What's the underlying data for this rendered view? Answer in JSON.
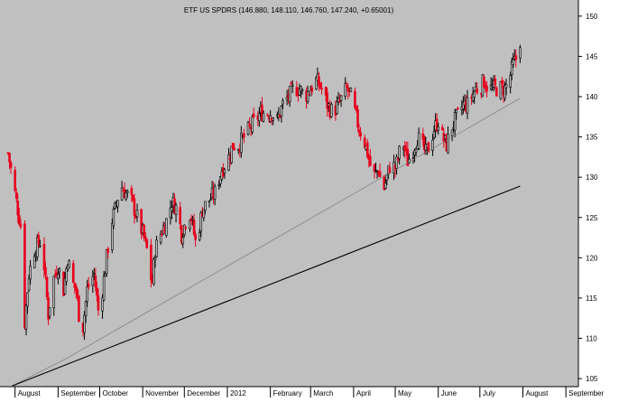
{
  "chart_data": {
    "type": "candlestick",
    "title": "ETF US SPDRS (146.880, 148.110, 146.760, 147.240, +0.65001)",
    "xlabel": "",
    "ylabel": "",
    "ylim": [
      104,
      152
    ],
    "y_ticks": [
      105,
      110,
      115,
      120,
      125,
      130,
      135,
      140,
      145,
      150
    ],
    "grid": false,
    "colors": {
      "background": "#c0c0c0",
      "up": "#000000",
      "down": "#e8001c",
      "trendline_thin": "#7a7a7a",
      "trendline_thick": "#000000"
    },
    "x_labels": [
      {
        "label": "August",
        "day": 0
      },
      {
        "label": "September",
        "day": 31
      },
      {
        "label": "October",
        "day": 61
      },
      {
        "label": "November",
        "day": 92
      },
      {
        "label": "December",
        "day": 122
      },
      {
        "label": "2012",
        "day": 153
      },
      {
        "label": "February",
        "day": 184
      },
      {
        "label": "March",
        "day": 213
      },
      {
        "label": "April",
        "day": 244
      },
      {
        "label": "May",
        "day": 274
      },
      {
        "label": "June",
        "day": 305
      },
      {
        "label": "July",
        "day": 335
      },
      {
        "label": "August",
        "day": 366
      },
      {
        "label": "September",
        "day": 397
      }
    ],
    "price_path": [
      [
        -5,
        133
      ],
      [
        0,
        128
      ],
      [
        4,
        124
      ],
      [
        7,
        112
      ],
      [
        10,
        118
      ],
      [
        14,
        121
      ],
      [
        18,
        122
      ],
      [
        21,
        119
      ],
      [
        24,
        113
      ],
      [
        27,
        117
      ],
      [
        31,
        119
      ],
      [
        35,
        116
      ],
      [
        38,
        120
      ],
      [
        41,
        117
      ],
      [
        44,
        116
      ],
      [
        48,
        110
      ],
      [
        52,
        116
      ],
      [
        54,
        117
      ],
      [
        57,
        118
      ],
      [
        61,
        112
      ],
      [
        63,
        116
      ],
      [
        66,
        120
      ],
      [
        69,
        124
      ],
      [
        72,
        126
      ],
      [
        76,
        129
      ],
      [
        80,
        128
      ],
      [
        84,
        127
      ],
      [
        88,
        125
      ],
      [
        92,
        123
      ],
      [
        95,
        121
      ],
      [
        97,
        118
      ],
      [
        99,
        117
      ],
      [
        101,
        121
      ],
      [
        105,
        123
      ],
      [
        110,
        125
      ],
      [
        113,
        127
      ],
      [
        117,
        126
      ],
      [
        120,
        123
      ],
      [
        122,
        124
      ],
      [
        125,
        126
      ],
      [
        127,
        125
      ],
      [
        130,
        122
      ],
      [
        132,
        123
      ],
      [
        135,
        126
      ],
      [
        139,
        127
      ],
      [
        144,
        128
      ],
      [
        149,
        131
      ],
      [
        153,
        132
      ],
      [
        157,
        134
      ],
      [
        161,
        134
      ],
      [
        165,
        135
      ],
      [
        169,
        136
      ],
      [
        173,
        137
      ],
      [
        177,
        138
      ],
      [
        181,
        138
      ],
      [
        185,
        138
      ],
      [
        189,
        137
      ],
      [
        193,
        139
      ],
      [
        197,
        140
      ],
      [
        201,
        141
      ],
      [
        205,
        141
      ],
      [
        209,
        140
      ],
      [
        213,
        141
      ],
      [
        217,
        142
      ],
      [
        221,
        141
      ],
      [
        225,
        139
      ],
      [
        229,
        138
      ],
      [
        233,
        139
      ],
      [
        236,
        140
      ],
      [
        239,
        141
      ],
      [
        242,
        140
      ],
      [
        245,
        138
      ],
      [
        248,
        136
      ],
      [
        251,
        135
      ],
      [
        254,
        133
      ],
      [
        258,
        130
      ],
      [
        262,
        131
      ],
      [
        265,
        128
      ],
      [
        268,
        130
      ],
      [
        271,
        132
      ],
      [
        274,
        131
      ],
      [
        277,
        133
      ],
      [
        280,
        134
      ],
      [
        283,
        132
      ],
      [
        286,
        133
      ],
      [
        290,
        135
      ],
      [
        293,
        134
      ],
      [
        296,
        133
      ],
      [
        299,
        134
      ],
      [
        302,
        136
      ],
      [
        305,
        137
      ],
      [
        308,
        135
      ],
      [
        311,
        134
      ],
      [
        314,
        136
      ],
      [
        317,
        137
      ],
      [
        320,
        138
      ],
      [
        323,
        139
      ],
      [
        326,
        139
      ],
      [
        329,
        140
      ],
      [
        332,
        141
      ],
      [
        335,
        141
      ],
      [
        338,
        142
      ],
      [
        341,
        141
      ],
      [
        344,
        141
      ],
      [
        347,
        141
      ],
      [
        350,
        141
      ],
      [
        353,
        141
      ],
      [
        356,
        142
      ],
      [
        359,
        144
      ],
      [
        362,
        145
      ],
      [
        364,
        147
      ]
    ],
    "trendlines": [
      {
        "name": "",
        "points": [
          [
            -2,
            104.1
          ],
          [
            36,
            107.4
          ],
          [
            364,
            139.8
          ]
        ]
      },
      {
        "name": "",
        "points": [
          [
            -2,
            104.1
          ],
          [
            364,
            128.9
          ]
        ]
      }
    ]
  }
}
